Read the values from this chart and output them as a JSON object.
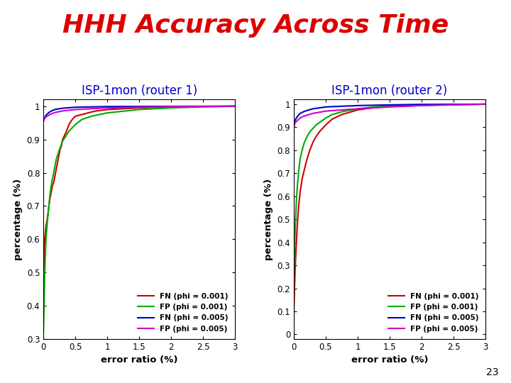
{
  "title": "HHH Accuracy Across Time",
  "title_color": "#dd0000",
  "title_fontsize": 26,
  "subtitle1": "ISP-1mon (router 1)",
  "subtitle2": "ISP-1mon (router 2)",
  "subtitle_color": "#0000cc",
  "subtitle_fontsize": 12,
  "xlabel": "error ratio (%)",
  "ylabel": "percentage (%)",
  "background_color": "#ffffff",
  "legend_labels": [
    "FN (phi = 0.001)",
    "FP (phi = 0.001)",
    "FN (phi = 0.005)",
    "FP (phi = 0.005)"
  ],
  "line_colors": [
    "#cc0000",
    "#00aa00",
    "#0000cc",
    "#cc00cc"
  ],
  "plot1": {
    "xlim": [
      0,
      3
    ],
    "ylim": [
      0.3,
      1.02
    ],
    "yticks": [
      0.3,
      0.4,
      0.5,
      0.6,
      0.7,
      0.8,
      0.9,
      1.0
    ],
    "ytick_labels": [
      "0.3",
      "0.4",
      "0.5",
      "0.6",
      "0.7",
      "0.8",
      "0.9",
      "1"
    ],
    "xticks": [
      0,
      0.5,
      1,
      1.5,
      2,
      2.5,
      3
    ],
    "xtick_labels": [
      "0",
      "0.5",
      "1",
      "1.5",
      "2",
      "2.5",
      "3"
    ],
    "fn001_x": [
      0.0,
      0.02,
      0.04,
      0.06,
      0.08,
      0.1,
      0.12,
      0.14,
      0.16,
      0.18,
      0.2,
      0.22,
      0.24,
      0.26,
      0.28,
      0.3,
      0.35,
      0.4,
      0.45,
      0.5,
      0.6,
      0.7,
      0.8,
      1.0,
      1.5,
      2.0,
      2.5,
      3.0
    ],
    "fn001_y": [
      0.44,
      0.6,
      0.64,
      0.66,
      0.69,
      0.72,
      0.74,
      0.76,
      0.77,
      0.79,
      0.81,
      0.83,
      0.85,
      0.87,
      0.88,
      0.9,
      0.92,
      0.945,
      0.96,
      0.97,
      0.975,
      0.98,
      0.985,
      0.99,
      0.995,
      0.998,
      0.999,
      1.0
    ],
    "fp001_x": [
      0.0,
      0.02,
      0.04,
      0.06,
      0.08,
      0.1,
      0.12,
      0.14,
      0.16,
      0.18,
      0.2,
      0.25,
      0.3,
      0.35,
      0.4,
      0.5,
      0.6,
      0.75,
      1.0,
      1.5,
      2.0,
      2.5,
      3.0
    ],
    "fp001_y": [
      0.32,
      0.5,
      0.6,
      0.65,
      0.69,
      0.73,
      0.76,
      0.78,
      0.8,
      0.82,
      0.84,
      0.87,
      0.895,
      0.91,
      0.925,
      0.945,
      0.96,
      0.97,
      0.98,
      0.99,
      0.995,
      0.998,
      1.0
    ],
    "fn005_x": [
      0.0,
      0.01,
      0.02,
      0.03,
      0.05,
      0.08,
      0.1,
      0.15,
      0.2,
      0.3,
      0.5,
      1.0,
      2.0,
      3.0
    ],
    "fn005_y": [
      0.955,
      0.96,
      0.965,
      0.97,
      0.975,
      0.98,
      0.983,
      0.988,
      0.991,
      0.994,
      0.997,
      0.999,
      0.9998,
      1.0
    ],
    "fp005_x": [
      0.0,
      0.01,
      0.02,
      0.03,
      0.05,
      0.08,
      0.1,
      0.15,
      0.2,
      0.3,
      0.5,
      1.0,
      2.0,
      3.0
    ],
    "fp005_y": [
      0.955,
      0.96,
      0.963,
      0.966,
      0.969,
      0.972,
      0.975,
      0.979,
      0.982,
      0.986,
      0.99,
      0.995,
      0.999,
      1.0
    ]
  },
  "plot2": {
    "xlim": [
      0,
      3
    ],
    "ylim": [
      -0.02,
      1.02
    ],
    "yticks": [
      0,
      0.1,
      0.2,
      0.3,
      0.4,
      0.5,
      0.6,
      0.7,
      0.8,
      0.9,
      1.0
    ],
    "ytick_labels": [
      "0",
      "0.1",
      "0.2",
      "0.3",
      "0.4",
      "0.5",
      "0.6",
      "0.7",
      "0.8",
      "0.9",
      "1"
    ],
    "xticks": [
      0,
      0.5,
      1,
      1.5,
      2,
      2.5,
      3
    ],
    "xtick_labels": [
      "0",
      "0.5",
      "1",
      "1.5",
      "2",
      "2.5",
      "3"
    ],
    "fn001_x": [
      0.0,
      0.02,
      0.04,
      0.06,
      0.08,
      0.1,
      0.13,
      0.16,
      0.2,
      0.25,
      0.3,
      0.35,
      0.4,
      0.5,
      0.6,
      0.75,
      1.0,
      1.25,
      1.5,
      2.0,
      2.5,
      3.0
    ],
    "fn001_y": [
      0.1,
      0.28,
      0.4,
      0.5,
      0.57,
      0.62,
      0.675,
      0.71,
      0.755,
      0.8,
      0.835,
      0.86,
      0.88,
      0.91,
      0.935,
      0.955,
      0.975,
      0.985,
      0.99,
      0.995,
      0.998,
      1.0
    ],
    "fp001_x": [
      0.0,
      0.02,
      0.04,
      0.06,
      0.08,
      0.1,
      0.13,
      0.16,
      0.2,
      0.25,
      0.3,
      0.35,
      0.4,
      0.5,
      0.6,
      0.75,
      1.0,
      1.25,
      1.5,
      2.0,
      2.5,
      3.0
    ],
    "fp001_y": [
      0.25,
      0.45,
      0.58,
      0.66,
      0.72,
      0.765,
      0.8,
      0.83,
      0.855,
      0.88,
      0.895,
      0.91,
      0.92,
      0.94,
      0.955,
      0.967,
      0.98,
      0.988,
      0.992,
      0.996,
      0.999,
      1.0
    ],
    "fn005_x": [
      0.0,
      0.01,
      0.02,
      0.04,
      0.06,
      0.08,
      0.1,
      0.15,
      0.2,
      0.3,
      0.5,
      1.0,
      1.5,
      2.0,
      3.0
    ],
    "fn005_y": [
      0.91,
      0.92,
      0.93,
      0.94,
      0.948,
      0.955,
      0.96,
      0.967,
      0.972,
      0.98,
      0.988,
      0.994,
      0.997,
      0.999,
      1.0
    ],
    "fp005_x": [
      0.0,
      0.01,
      0.02,
      0.04,
      0.06,
      0.08,
      0.1,
      0.15,
      0.2,
      0.3,
      0.5,
      1.0,
      1.5,
      2.0,
      3.0
    ],
    "fp005_y": [
      0.9,
      0.91,
      0.918,
      0.925,
      0.93,
      0.935,
      0.94,
      0.947,
      0.952,
      0.96,
      0.97,
      0.98,
      0.988,
      0.994,
      1.0
    ]
  },
  "page_number": "23"
}
